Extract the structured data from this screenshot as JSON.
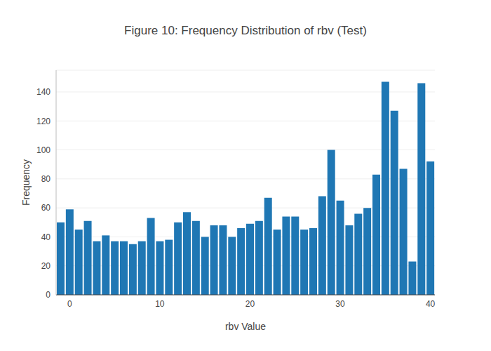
{
  "chart_data": {
    "type": "bar",
    "title": "Figure 10: Frequency Distribution of rbv (Test)",
    "x_label": "rbv Value",
    "y_label": "Frequency",
    "x": [
      -1,
      0,
      1,
      2,
      3,
      4,
      5,
      6,
      7,
      8,
      9,
      10,
      11,
      12,
      13,
      14,
      15,
      16,
      17,
      18,
      19,
      20,
      21,
      22,
      23,
      24,
      25,
      26,
      27,
      28,
      29,
      30,
      31,
      32,
      33,
      34,
      35,
      36,
      37,
      38,
      39,
      40
    ],
    "values": [
      50,
      59,
      45,
      51,
      37,
      41,
      37,
      37,
      35,
      37,
      53,
      37,
      38,
      50,
      57,
      51,
      40,
      48,
      48,
      40,
      46,
      49,
      51,
      67,
      45,
      54,
      54,
      45,
      46,
      68,
      100,
      65,
      48,
      56,
      60,
      83,
      147,
      127,
      87,
      23,
      146,
      92
    ],
    "color": "#1f77b4",
    "xlim": [
      -1.5,
      40.5
    ],
    "xticks": [
      0,
      10,
      20,
      30,
      40
    ],
    "ylim": [
      0,
      155
    ],
    "yticks": [
      0,
      20,
      40,
      60,
      80,
      100,
      120,
      140
    ],
    "grid": true
  }
}
